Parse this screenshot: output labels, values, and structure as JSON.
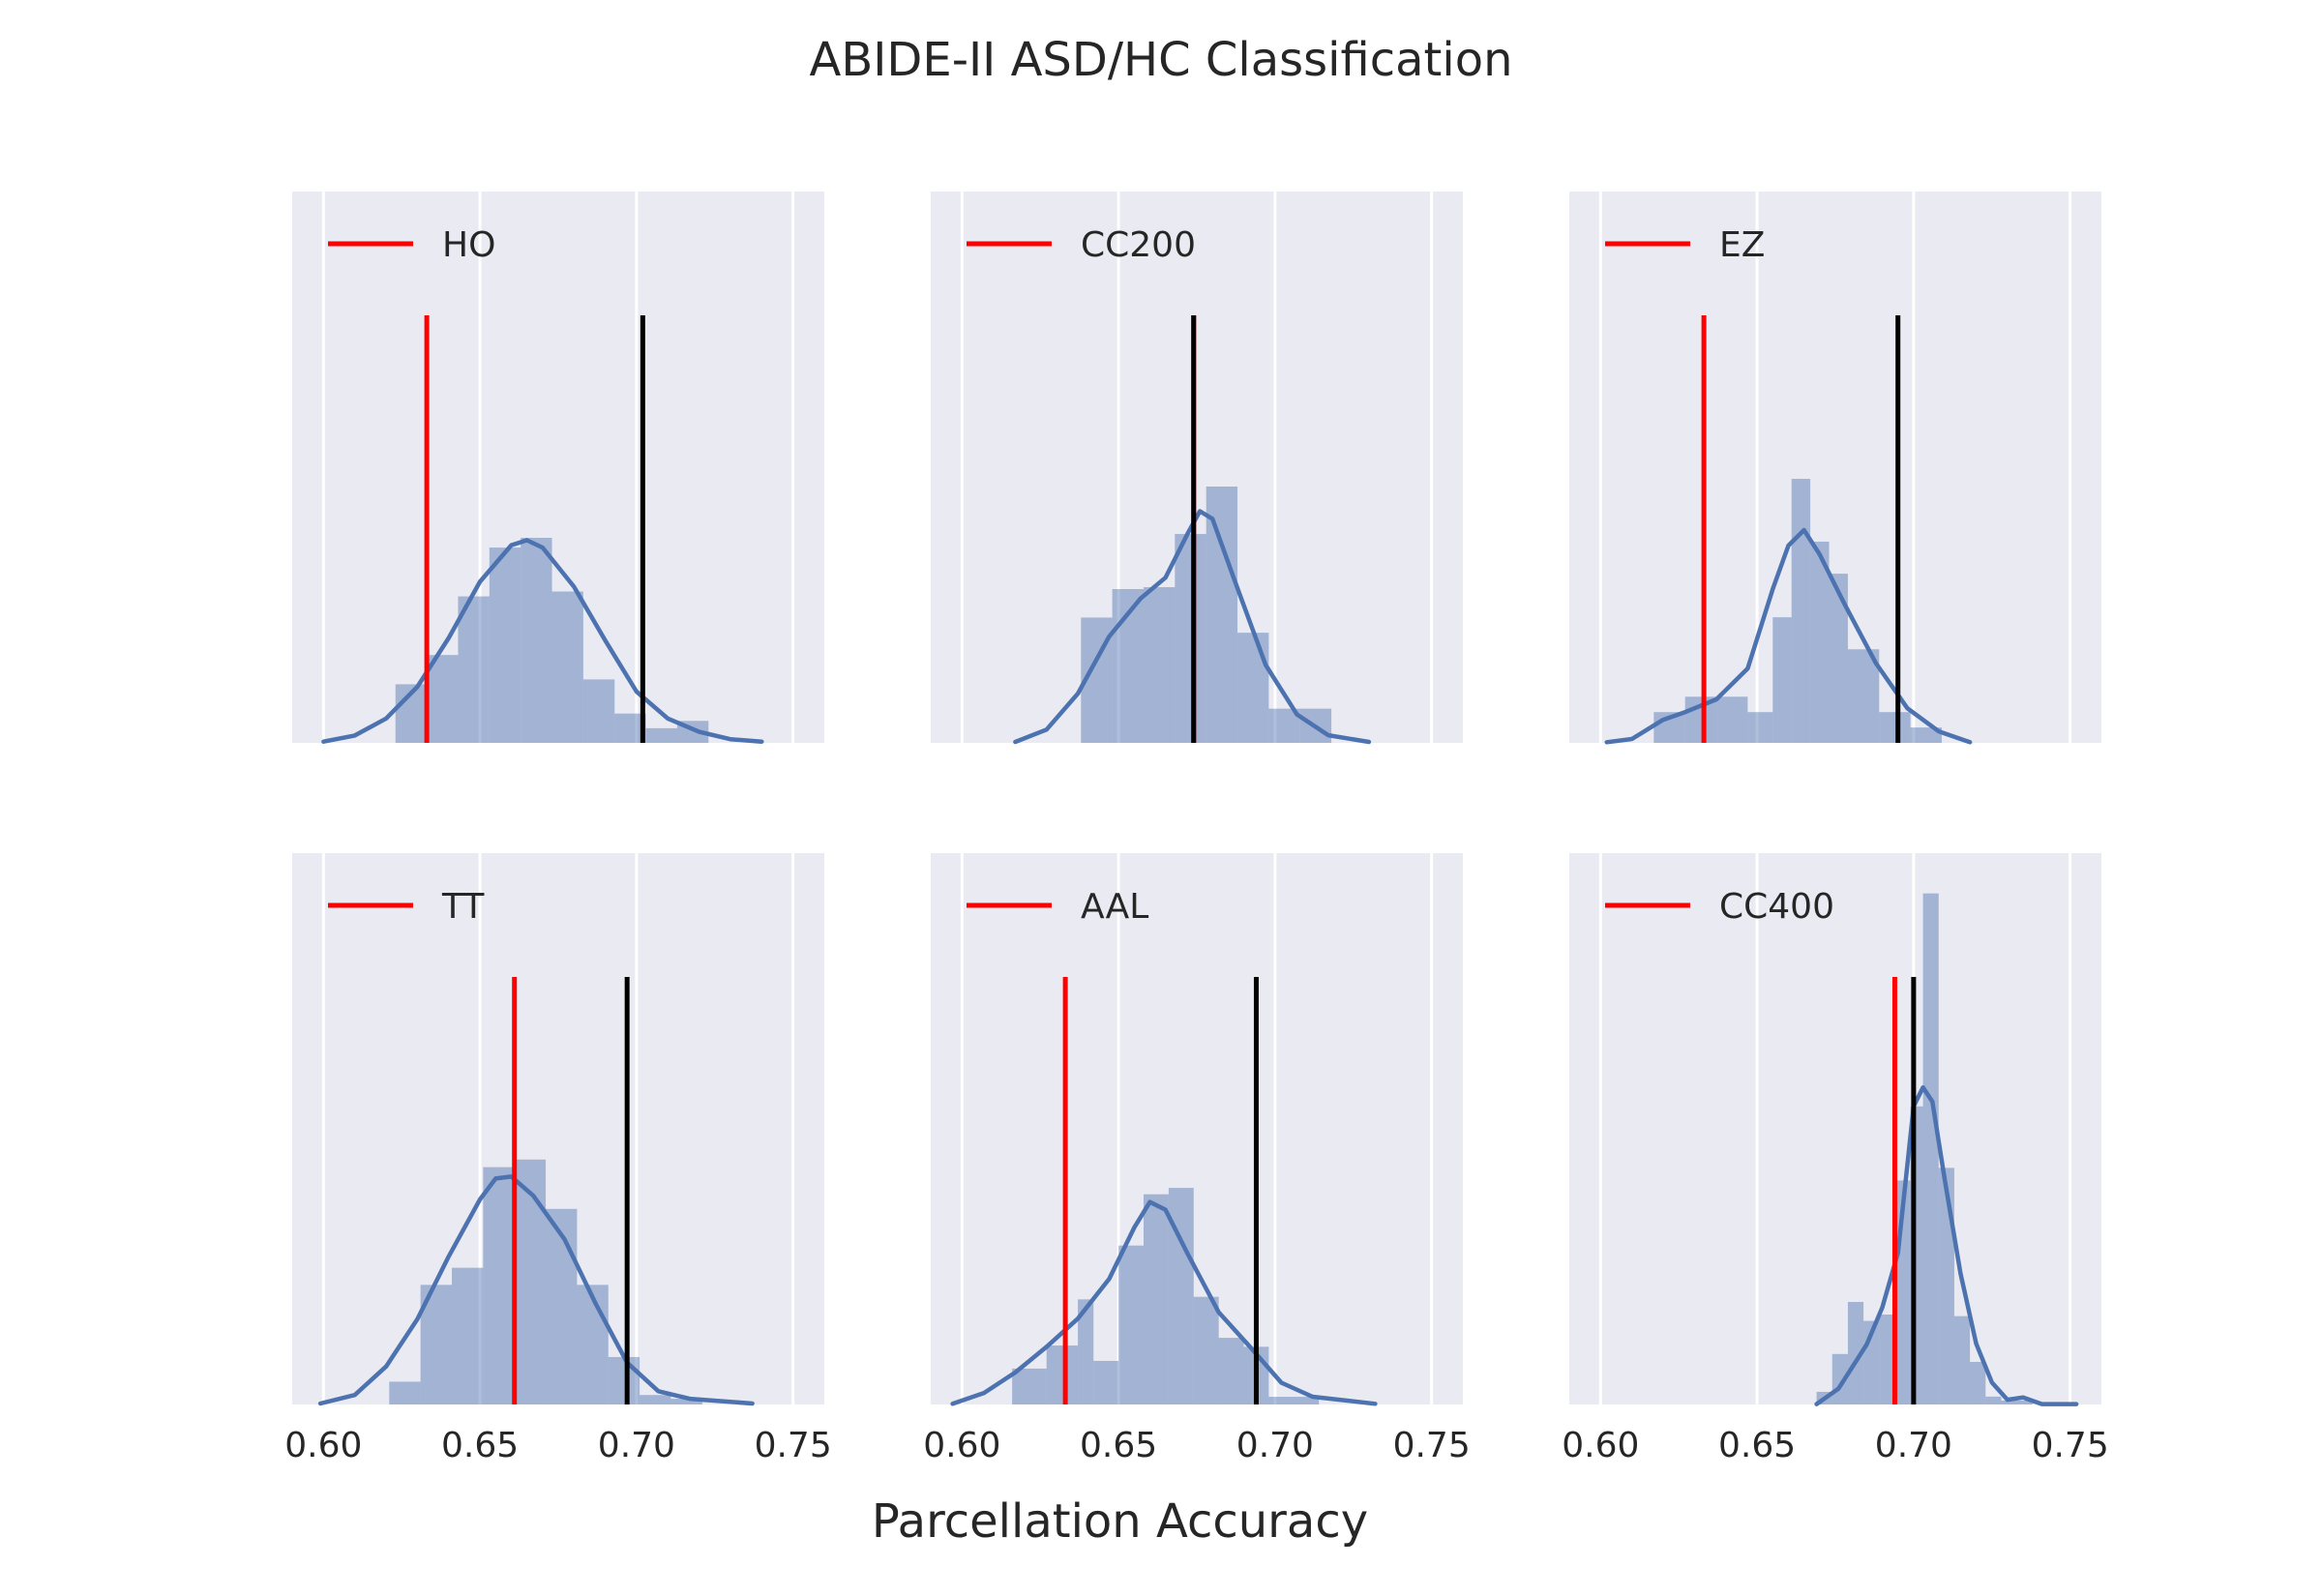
{
  "title": "ABIDE-II ASD/HC Classification",
  "xlabel": "Parcellation Accuracy",
  "colors": {
    "panel_background": "#EAEAF2",
    "grid": "#FFFFFF",
    "histogram": "#4C72B0",
    "kde": "#4C72B0",
    "red_line": "#FF0000",
    "black_line": "#000000"
  },
  "chart_data": [
    {
      "type": "histogram",
      "label": "HO",
      "xlim": [
        0.59,
        0.76
      ],
      "xticks": [
        "0.60",
        "0.65",
        "0.70",
        "0.75"
      ],
      "red_line": 0.633,
      "black_line": 0.702,
      "bins": [
        [
          0.623,
          0.633,
          2.4
        ],
        [
          0.633,
          0.643,
          3.6
        ],
        [
          0.643,
          0.653,
          6.0
        ],
        [
          0.653,
          0.663,
          8.0
        ],
        [
          0.663,
          0.673,
          8.4
        ],
        [
          0.673,
          0.683,
          6.2
        ],
        [
          0.683,
          0.693,
          2.6
        ],
        [
          0.693,
          0.703,
          1.2
        ],
        [
          0.703,
          0.713,
          0.6
        ],
        [
          0.713,
          0.723,
          0.9
        ]
      ],
      "kde": [
        [
          0.6,
          0.05
        ],
        [
          0.61,
          0.3
        ],
        [
          0.62,
          1.0
        ],
        [
          0.63,
          2.3
        ],
        [
          0.64,
          4.3
        ],
        [
          0.65,
          6.6
        ],
        [
          0.66,
          8.1
        ],
        [
          0.665,
          8.3
        ],
        [
          0.67,
          8.0
        ],
        [
          0.68,
          6.4
        ],
        [
          0.69,
          4.2
        ],
        [
          0.7,
          2.1
        ],
        [
          0.71,
          1.0
        ],
        [
          0.72,
          0.45
        ],
        [
          0.73,
          0.15
        ],
        [
          0.74,
          0.05
        ]
      ],
      "ymax": 21
    },
    {
      "type": "histogram",
      "label": "CC200",
      "xlim": [
        0.59,
        0.76
      ],
      "xticks": [
        "0.60",
        "0.65",
        "0.70",
        "0.75"
      ],
      "red_line": 0.674,
      "black_line": 0.674,
      "bins": [
        [
          0.638,
          0.648,
          6.6
        ],
        [
          0.648,
          0.658,
          8.1
        ],
        [
          0.658,
          0.668,
          8.2
        ],
        [
          0.668,
          0.678,
          11.0
        ],
        [
          0.678,
          0.688,
          13.5
        ],
        [
          0.688,
          0.698,
          5.8
        ],
        [
          0.698,
          0.708,
          1.8
        ],
        [
          0.708,
          0.718,
          1.8
        ]
      ],
      "kde": [
        [
          0.617,
          0.05
        ],
        [
          0.627,
          0.7
        ],
        [
          0.637,
          2.6
        ],
        [
          0.647,
          5.6
        ],
        [
          0.657,
          7.6
        ],
        [
          0.665,
          8.7
        ],
        [
          0.672,
          11.0
        ],
        [
          0.676,
          12.2
        ],
        [
          0.68,
          11.8
        ],
        [
          0.687,
          8.6
        ],
        [
          0.697,
          4.1
        ],
        [
          0.707,
          1.5
        ],
        [
          0.717,
          0.4
        ],
        [
          0.73,
          0.05
        ]
      ],
      "ymax": 27
    },
    {
      "type": "histogram",
      "label": "EZ",
      "xlim": [
        0.59,
        0.76
      ],
      "xticks": [
        "0.60",
        "0.65",
        "0.70",
        "0.75"
      ],
      "red_line": 0.633,
      "black_line": 0.695,
      "bins": [
        [
          0.617,
          0.627,
          2.4
        ],
        [
          0.627,
          0.637,
          3.6
        ],
        [
          0.637,
          0.647,
          3.6
        ],
        [
          0.647,
          0.655,
          2.4
        ],
        [
          0.655,
          0.661,
          9.8
        ],
        [
          0.661,
          0.667,
          20.6
        ],
        [
          0.667,
          0.673,
          15.7
        ],
        [
          0.673,
          0.679,
          13.2
        ],
        [
          0.679,
          0.689,
          7.3
        ],
        [
          0.689,
          0.699,
          2.4
        ],
        [
          0.699,
          0.709,
          1.2
        ]
      ],
      "kde": [
        [
          0.602,
          0.05
        ],
        [
          0.61,
          0.3
        ],
        [
          0.62,
          1.8
        ],
        [
          0.627,
          2.4
        ],
        [
          0.637,
          3.4
        ],
        [
          0.647,
          5.8
        ],
        [
          0.655,
          12.0
        ],
        [
          0.66,
          15.4
        ],
        [
          0.665,
          16.6
        ],
        [
          0.67,
          14.7
        ],
        [
          0.678,
          10.8
        ],
        [
          0.688,
          6.2
        ],
        [
          0.698,
          2.7
        ],
        [
          0.708,
          0.9
        ],
        [
          0.718,
          0.05
        ]
      ],
      "ymax": 40
    },
    {
      "type": "histogram",
      "label": "TT",
      "xlim": [
        0.59,
        0.76
      ],
      "xticks": [
        "0.60",
        "0.65",
        "0.70",
        "0.75"
      ],
      "red_line": 0.661,
      "black_line": 0.697,
      "bins": [
        [
          0.621,
          0.631,
          1.2
        ],
        [
          0.631,
          0.641,
          6.3
        ],
        [
          0.641,
          0.651,
          7.2
        ],
        [
          0.651,
          0.661,
          12.5
        ],
        [
          0.661,
          0.671,
          12.9
        ],
        [
          0.671,
          0.681,
          10.3
        ],
        [
          0.681,
          0.691,
          6.3
        ],
        [
          0.691,
          0.701,
          2.5
        ],
        [
          0.701,
          0.711,
          0.5
        ],
        [
          0.711,
          0.721,
          0.3
        ]
      ],
      "kde": [
        [
          0.599,
          0.05
        ],
        [
          0.61,
          0.5
        ],
        [
          0.62,
          2.0
        ],
        [
          0.63,
          4.5
        ],
        [
          0.64,
          7.8
        ],
        [
          0.65,
          10.8
        ],
        [
          0.655,
          11.9
        ],
        [
          0.66,
          12.0
        ],
        [
          0.667,
          11.0
        ],
        [
          0.677,
          8.7
        ],
        [
          0.687,
          5.3
        ],
        [
          0.697,
          2.2
        ],
        [
          0.707,
          0.7
        ],
        [
          0.717,
          0.3
        ],
        [
          0.737,
          0.05
        ]
      ],
      "ymax": 27
    },
    {
      "type": "histogram",
      "label": "AAL",
      "xlim": [
        0.59,
        0.76
      ],
      "xticks": [
        "0.60",
        "0.65",
        "0.70",
        "0.75"
      ],
      "red_line": 0.633,
      "black_line": 0.694,
      "bins": [
        [
          0.616,
          0.627,
          2.8
        ],
        [
          0.627,
          0.637,
          4.6
        ],
        [
          0.637,
          0.642,
          8.2
        ],
        [
          0.642,
          0.65,
          3.4
        ],
        [
          0.65,
          0.658,
          12.4
        ],
        [
          0.658,
          0.666,
          16.4
        ],
        [
          0.666,
          0.674,
          16.9
        ],
        [
          0.674,
          0.682,
          8.4
        ],
        [
          0.682,
          0.69,
          5.2
        ],
        [
          0.69,
          0.698,
          4.5
        ],
        [
          0.698,
          0.714,
          0.6
        ]
      ],
      "kde": [
        [
          0.597,
          0.05
        ],
        [
          0.607,
          0.9
        ],
        [
          0.617,
          2.5
        ],
        [
          0.627,
          4.5
        ],
        [
          0.637,
          6.7
        ],
        [
          0.647,
          9.8
        ],
        [
          0.655,
          13.8
        ],
        [
          0.66,
          15.8
        ],
        [
          0.665,
          15.2
        ],
        [
          0.672,
          11.8
        ],
        [
          0.682,
          7.2
        ],
        [
          0.692,
          4.5
        ],
        [
          0.702,
          1.7
        ],
        [
          0.712,
          0.6
        ],
        [
          0.732,
          0.05
        ]
      ],
      "ymax": 40
    },
    {
      "type": "histogram",
      "label": "CC400",
      "xlim": [
        0.59,
        0.76
      ],
      "xticks": [
        "0.60",
        "0.65",
        "0.70",
        "0.75"
      ],
      "red_line": 0.694,
      "black_line": 0.7,
      "bins": [
        [
          0.669,
          0.674,
          1.6
        ],
        [
          0.674,
          0.679,
          6.4
        ],
        [
          0.679,
          0.684,
          13.0
        ],
        [
          0.684,
          0.689,
          10.6
        ],
        [
          0.689,
          0.694,
          11.4
        ],
        [
          0.694,
          0.699,
          28.4
        ],
        [
          0.699,
          0.703,
          37.8
        ],
        [
          0.703,
          0.708,
          64.8
        ],
        [
          0.708,
          0.713,
          30.0
        ],
        [
          0.713,
          0.718,
          11.2
        ],
        [
          0.718,
          0.723,
          5.4
        ],
        [
          0.723,
          0.728,
          1.0
        ],
        [
          0.728,
          0.733,
          0.5
        ],
        [
          0.733,
          0.738,
          0.5
        ]
      ],
      "kde": [
        [
          0.669,
          0.05
        ],
        [
          0.676,
          2.0
        ],
        [
          0.685,
          7.6
        ],
        [
          0.69,
          12.3
        ],
        [
          0.695,
          19.2
        ],
        [
          0.7,
          37.8
        ],
        [
          0.703,
          40.2
        ],
        [
          0.706,
          38.4
        ],
        [
          0.71,
          28.4
        ],
        [
          0.715,
          16.6
        ],
        [
          0.72,
          7.7
        ],
        [
          0.725,
          2.8
        ],
        [
          0.73,
          0.6
        ],
        [
          0.735,
          0.9
        ],
        [
          0.741,
          0.05
        ],
        [
          0.752,
          0.05
        ]
      ],
      "ymax": 65
    }
  ]
}
